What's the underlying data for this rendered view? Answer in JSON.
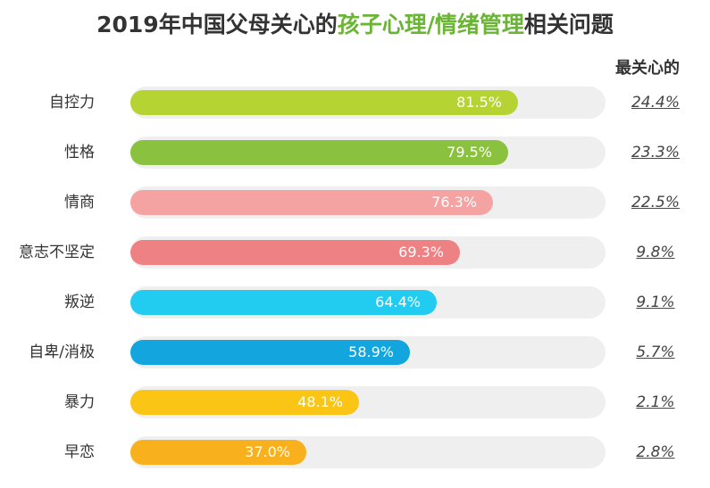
{
  "title": {
    "prefix": "2019年中国父母关心的",
    "highlight": "孩子心理/情绪管理",
    "suffix": "相关问题"
  },
  "right_header": "最关心的",
  "chart_data": {
    "type": "bar",
    "orientation": "horizontal",
    "xlim": [
      0,
      100
    ],
    "categories": [
      "自控力",
      "性格",
      "情商",
      "意志不坚定",
      "叛逆",
      "自卑/消极",
      "暴力",
      "早恋"
    ],
    "series": [
      {
        "values": [
          81.5,
          79.5,
          76.3,
          69.3,
          64.4,
          58.9,
          48.1,
          37.0
        ],
        "labels": [
          "81.5%",
          "79.5%",
          "76.3%",
          "69.3%",
          "64.4%",
          "58.9%",
          "48.1%",
          "37.0%"
        ],
        "colors": [
          "#b5d433",
          "#8ac13e",
          "#f4a3a2",
          "#ee8184",
          "#22ccf0",
          "#13a5de",
          "#fac515",
          "#f8b01c"
        ]
      },
      {
        "name": "最关心的",
        "values": [
          24.4,
          23.3,
          22.5,
          9.8,
          9.1,
          5.7,
          2.1,
          2.8
        ],
        "labels": [
          "24.4%",
          "23.3%",
          "22.5%",
          "9.8%",
          "9.1%",
          "5.7%",
          "2.1%",
          "2.8%"
        ]
      }
    ]
  }
}
